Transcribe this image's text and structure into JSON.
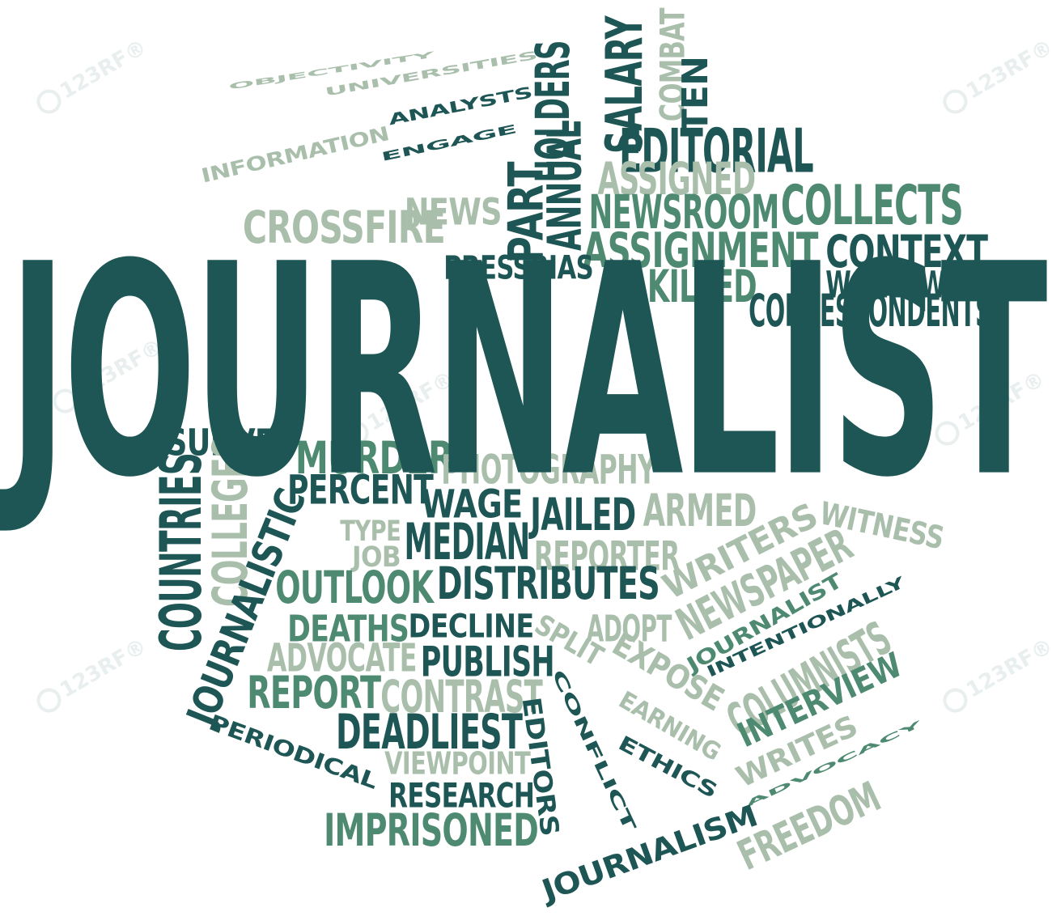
{
  "palette": {
    "dark": "#1d5655",
    "mid": "#4e8a72",
    "light": "#a9bfab",
    "watermark": "#e9eeee"
  },
  "watermark": {
    "text": "123RF",
    "registered": "®"
  },
  "main_word": "JOURNALIST",
  "words": [
    {
      "text": "OBJECTIVITY"
    },
    {
      "text": "UNIVERSITIES"
    },
    {
      "text": "INFORMATION"
    },
    {
      "text": "ANALYSTS"
    },
    {
      "text": "ENGAGE"
    },
    {
      "text": "HOLDERS"
    },
    {
      "text": "PART"
    },
    {
      "text": "ANNUAL"
    },
    {
      "text": "SALARY"
    },
    {
      "text": "COMBAT"
    },
    {
      "text": "TEN"
    },
    {
      "text": "EDITORIAL"
    },
    {
      "text": "ASSIGNED"
    },
    {
      "text": "NEWS"
    },
    {
      "text": "NEWSROOM"
    },
    {
      "text": "COLLECTS"
    },
    {
      "text": "CROSSFIRE"
    },
    {
      "text": "ASSIGNMENT"
    },
    {
      "text": "CONTEXT"
    },
    {
      "text": "PRESSBIAS"
    },
    {
      "text": "KILLED"
    },
    {
      "text": "WORLDWIDE"
    },
    {
      "text": "CORRESPONDENTS"
    },
    {
      "text": "SURVEY"
    },
    {
      "text": "MURDER"
    },
    {
      "text": "PHOTOGRAPHY"
    },
    {
      "text": "COUNTRIES"
    },
    {
      "text": "COLLEGES"
    },
    {
      "text": "PERCENT"
    },
    {
      "text": "WAGE"
    },
    {
      "text": "JAILED"
    },
    {
      "text": "ARMED"
    },
    {
      "text": "WITNESS"
    },
    {
      "text": "JOURNALISTIC"
    },
    {
      "text": "TYPE"
    },
    {
      "text": "JOB"
    },
    {
      "text": "MEDIAN"
    },
    {
      "text": "REPORTER"
    },
    {
      "text": "WRITERS"
    },
    {
      "text": "NEWSPAPER"
    },
    {
      "text": "OUTLOOK"
    },
    {
      "text": "DISTRIBUTES"
    },
    {
      "text": "JOURNALIST"
    },
    {
      "text": "DEATHS"
    },
    {
      "text": "DECLINE"
    },
    {
      "text": "ADOPT"
    },
    {
      "text": "SPLIT"
    },
    {
      "text": "INTENTIONALLY"
    },
    {
      "text": "ADVOCATE"
    },
    {
      "text": "PUBLISH"
    },
    {
      "text": "EXPOSE"
    },
    {
      "text": "COLUMNISTS"
    },
    {
      "text": "REPORT"
    },
    {
      "text": "CONTRAST"
    },
    {
      "text": "CONFLICT"
    },
    {
      "text": "EARNING"
    },
    {
      "text": "INTERVIEW"
    },
    {
      "text": "DEADLIEST"
    },
    {
      "text": "EDITORS"
    },
    {
      "text": "PERIODICAL"
    },
    {
      "text": "VIEWPOINT"
    },
    {
      "text": "ETHICS"
    },
    {
      "text": "WRITES"
    },
    {
      "text": "RESEARCH"
    },
    {
      "text": "ADVOCACY"
    },
    {
      "text": "IMPRISONED"
    },
    {
      "text": "JOURNALISM"
    },
    {
      "text": "FREEDOM"
    }
  ]
}
